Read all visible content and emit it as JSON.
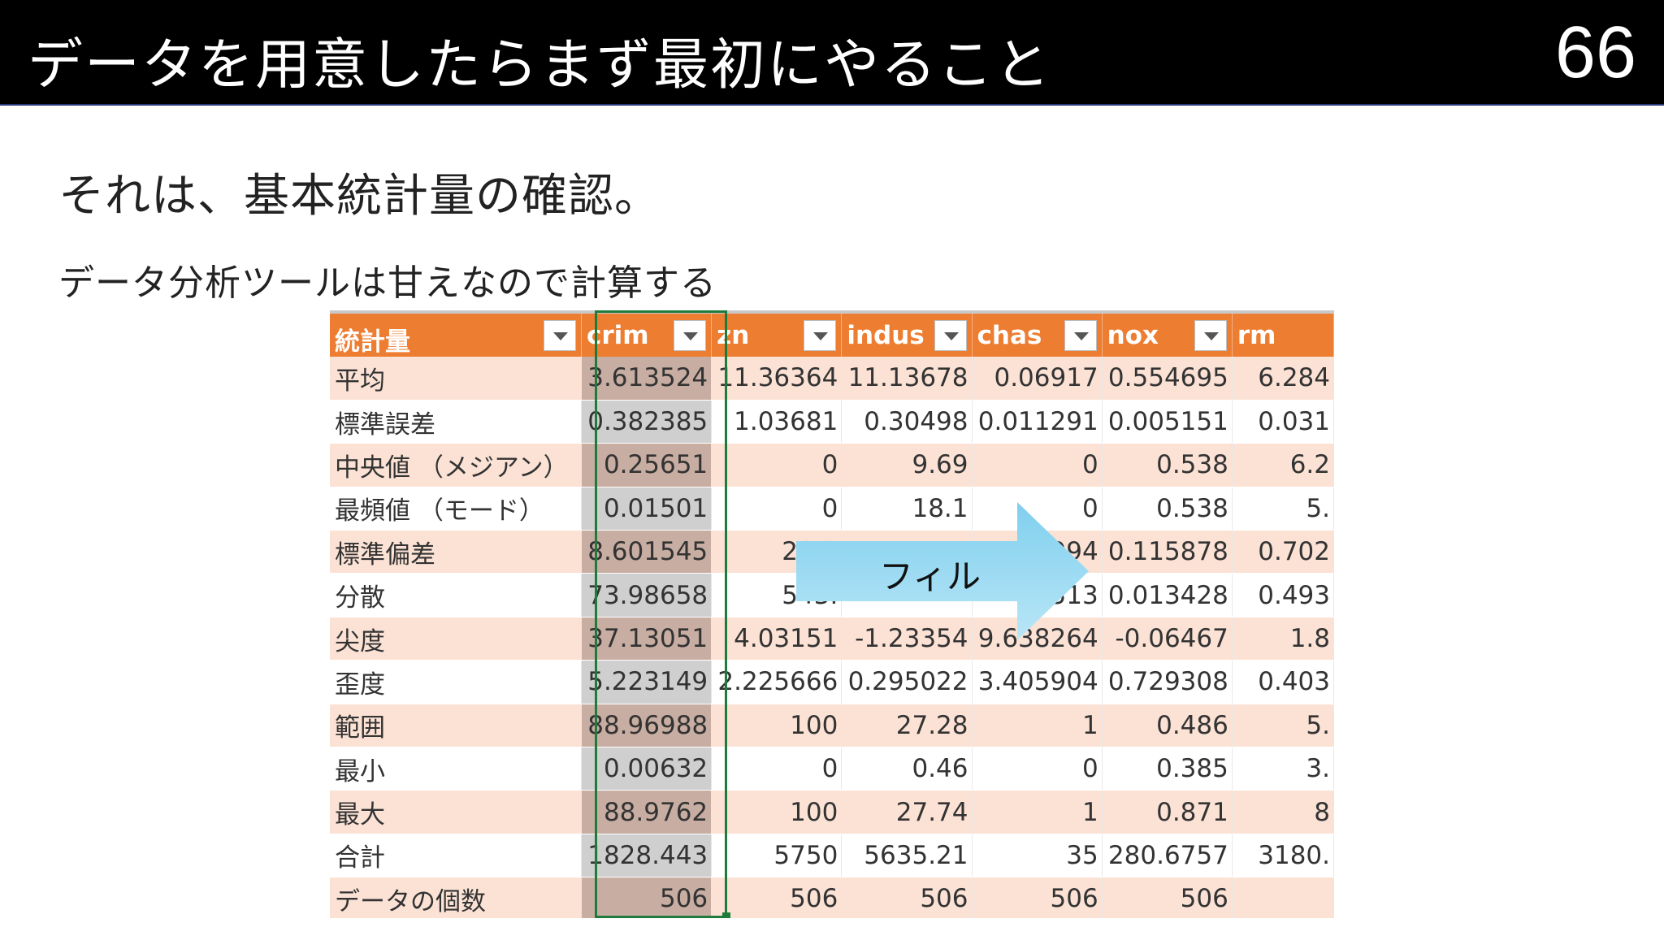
{
  "header": {
    "title": "データを用意したらまず最初にやること",
    "page_number": "66"
  },
  "subtitle": "それは、基本統計量の確認。",
  "note": "データ分析ツールは甘えなので計算する",
  "table": {
    "headers": [
      "統計量",
      "crim",
      "zn",
      "indus",
      "chas",
      "nox",
      "rm"
    ],
    "rows": [
      [
        "平均",
        "3.613524",
        "11.36364",
        "11.13678",
        "0.06917",
        "0.554695",
        "6.284"
      ],
      [
        "標準誤差",
        "0.382385",
        "1.03681",
        "0.30498",
        "0.011291",
        "0.005151",
        "0.031"
      ],
      [
        "中央値 （メジアン）",
        "0.25651",
        "0",
        "9.69",
        "0",
        "0.538",
        "6.2"
      ],
      [
        "最頻値 （モード）",
        "0.01501",
        "0",
        "18.1",
        "0",
        "0.538",
        "5."
      ],
      [
        "標準偏差",
        "8.601545",
        "23.3",
        "",
        "994",
        "0.115878",
        "0.702"
      ],
      [
        "分散",
        "73.98658",
        "543.",
        "",
        "513",
        "0.013428",
        "0.493"
      ],
      [
        "尖度",
        "37.13051",
        "4.03151",
        "-1.23354",
        "9.638264",
        "-0.06467",
        "1.8"
      ],
      [
        "歪度",
        "5.223149",
        "2.225666",
        "0.295022",
        "3.405904",
        "0.729308",
        "0.403"
      ],
      [
        "範囲",
        "88.96988",
        "100",
        "27.28",
        "1",
        "0.486",
        "5."
      ],
      [
        "最小",
        "0.00632",
        "0",
        "0.46",
        "0",
        "0.385",
        "3."
      ],
      [
        "最大",
        "88.9762",
        "100",
        "27.74",
        "1",
        "0.871",
        "8"
      ],
      [
        "合計",
        "1828.443",
        "5750",
        "5635.21",
        "35",
        "280.6757",
        "3180."
      ],
      [
        "データの個数",
        "506",
        "506",
        "506",
        "506",
        "506",
        ""
      ]
    ]
  },
  "callout": {
    "label": "フィル"
  },
  "colors": {
    "header_bg": "#ed7d31",
    "row_alt": "#fbe2d5",
    "selection": "#1e7b3c",
    "arrow": "#a6dcf2"
  }
}
